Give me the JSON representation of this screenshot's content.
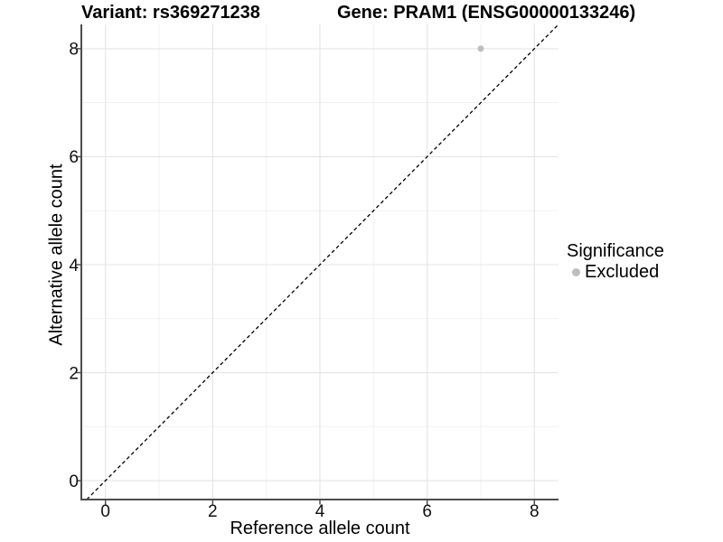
{
  "titles": {
    "variant": "Variant: rs369271238",
    "gene": "Gene: PRAM1 (ENSG00000133246)"
  },
  "chart_data": {
    "type": "scatter",
    "title_left": "Variant: rs369271238",
    "title_right": "Gene: PRAM1 (ENSG00000133246)",
    "xlabel": "Reference allele count",
    "ylabel": "Alternative allele count",
    "xlim": [
      -0.45,
      8.45
    ],
    "ylim": [
      -0.35,
      8.45
    ],
    "x_ticks": [
      0,
      2,
      4,
      6,
      8
    ],
    "y_ticks": [
      0,
      2,
      4,
      6,
      8
    ],
    "x_minor_ticks": [
      1,
      3,
      5,
      7
    ],
    "y_minor_ticks": [
      1,
      3,
      5,
      7
    ],
    "grid": true,
    "series": [
      {
        "name": "Excluded",
        "color": "#bebebe",
        "points": [
          {
            "x": 7,
            "y": 8
          }
        ]
      }
    ],
    "reference_line": {
      "type": "identity y=x",
      "style": "dashed",
      "color": "#000000"
    },
    "legend": {
      "title": "Significance",
      "position": "right",
      "items": [
        {
          "label": "Excluded",
          "color": "#bebebe"
        }
      ]
    },
    "colors": {
      "grid_major": "#e4e4e4",
      "grid_minor": "#f1f1f1",
      "axis_line": "#4d4d4d",
      "tick_mark": "#4d4d4d",
      "tick_label": "#111111",
      "point_excluded": "#bebebe"
    }
  }
}
